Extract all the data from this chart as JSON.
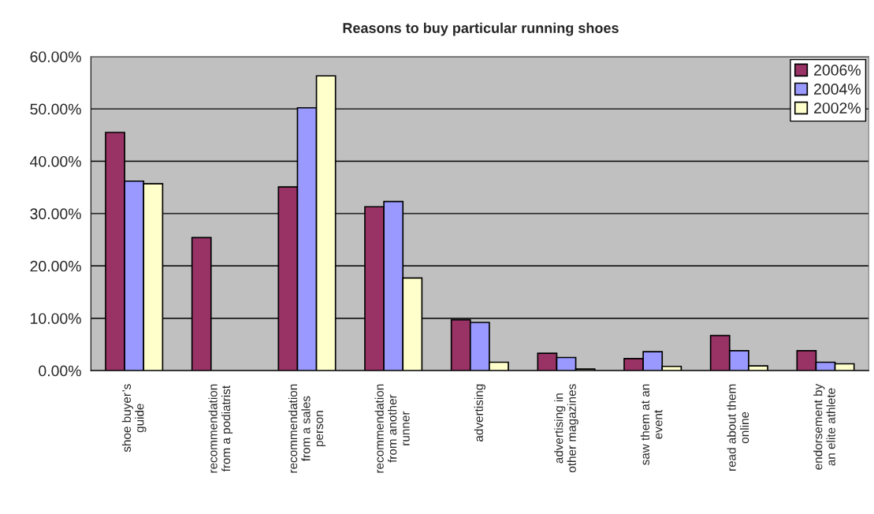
{
  "chart_data": {
    "type": "bar",
    "title": "Reasons to buy particular running shoes",
    "categories": [
      "shoe buyer’s\nguide",
      "recommendation\nfrom a podiatrist",
      "recommendation\nfrom a sales\nperson",
      "recommendation\nfrom another\nrunner",
      "advertising",
      "advertising in\nother magazines",
      "saw them at an\nevent",
      "read about them\nonline",
      "endorsement by\nan elite athlete"
    ],
    "series": [
      {
        "name": "2006%",
        "color": "#993366",
        "values": [
          45.5,
          25.4,
          35.1,
          31.3,
          9.7,
          3.3,
          2.3,
          6.7,
          3.8
        ]
      },
      {
        "name": "2004%",
        "color": "#9999ff",
        "values": [
          36.2,
          null,
          50.2,
          32.3,
          9.2,
          2.5,
          3.6,
          3.8,
          1.6
        ]
      },
      {
        "name": "2002%",
        "color": "#ffffcc",
        "values": [
          35.7,
          null,
          56.3,
          17.7,
          1.6,
          0.3,
          0.8,
          0.9,
          1.3
        ]
      }
    ],
    "ylim": [
      0,
      60
    ],
    "yticks": [
      {
        "value": 0,
        "label": "0.00%"
      },
      {
        "value": 10,
        "label": "10.00%"
      },
      {
        "value": 20,
        "label": "20.00%"
      },
      {
        "value": 30,
        "label": "30.00%"
      },
      {
        "value": 40,
        "label": "40.00%"
      },
      {
        "value": 50,
        "label": "50.00%"
      },
      {
        "value": 60,
        "label": "60.00%"
      }
    ],
    "grid": "y",
    "legend": "top right"
  }
}
